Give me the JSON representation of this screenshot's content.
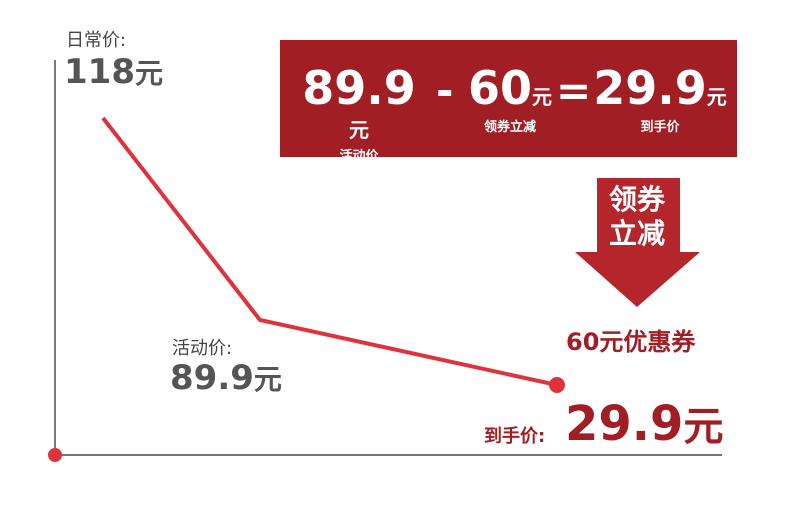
{
  "regular": {
    "label": "日常价:",
    "price": "118",
    "unit": "元"
  },
  "activity": {
    "label": "活动价:",
    "price": "89.9",
    "unit": "元"
  },
  "final": {
    "label": "到手价:",
    "price": "29.9",
    "unit": "元"
  },
  "formula": {
    "terms": [
      {
        "value": "89.9",
        "unit": "元",
        "label": "活动价"
      },
      {
        "value": "60",
        "unit": "元",
        "label": "领券立减"
      },
      {
        "value": "29.9",
        "unit": "元",
        "label": "到手价"
      }
    ],
    "operators": [
      "-",
      "="
    ]
  },
  "arrow": {
    "lines": [
      "领券",
      "立减"
    ]
  },
  "coupon": "60元优惠券"
}
